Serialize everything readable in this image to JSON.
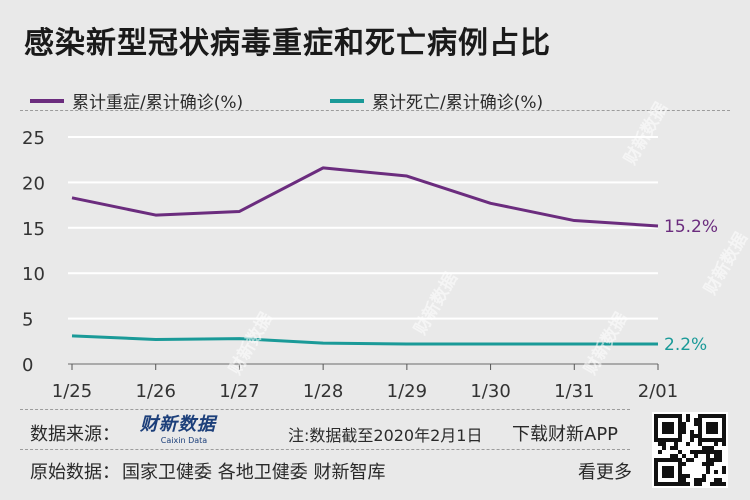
{
  "title": "感染新型冠状病毒重症和死亡病例占比",
  "legend": {
    "series1": "累计重症/累计确诊(%)",
    "series2": "累计死亡/累计确诊(%)"
  },
  "colors": {
    "series1": "#6b2c7e",
    "series2": "#1a9a98",
    "grid": "#ffffff",
    "axis": "#333333"
  },
  "chart_data": {
    "type": "line",
    "title": "感染新型冠状病毒重症和死亡病例占比",
    "x": [
      "1/25",
      "1/26",
      "1/27",
      "1/28",
      "1/29",
      "1/30",
      "1/31",
      "2/01"
    ],
    "yticks": [
      "0",
      "5",
      "10",
      "15",
      "20",
      "25"
    ],
    "ylim": [
      0,
      25
    ],
    "grid": true,
    "legend_position": "top-left",
    "series": [
      {
        "name": "累计重症/累计确诊(%)",
        "values": [
          18.3,
          16.4,
          16.8,
          21.6,
          20.7,
          17.7,
          15.8,
          15.2
        ],
        "end_label": "15.2%"
      },
      {
        "name": "累计死亡/累计确诊(%)",
        "values": [
          3.1,
          2.7,
          2.8,
          2.3,
          2.2,
          2.2,
          2.2,
          2.2
        ],
        "end_label": "2.2%"
      }
    ]
  },
  "footer": {
    "source_label": "数据来源：",
    "logo_text": "财新数据",
    "logo_sub": "Caixin Data",
    "note": "注:数据截至2020年2月1日",
    "download": "下载财新APP",
    "original_label": "原始数据：",
    "original_sources": "国家卫健委  各地卫健委  财新智库",
    "more": "看更多"
  },
  "watermark_text": "财新数据"
}
